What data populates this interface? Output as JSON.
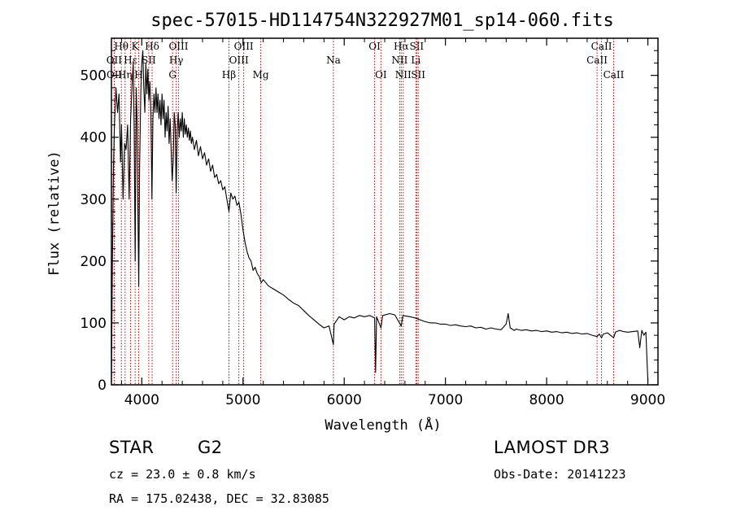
{
  "chart_data": {
    "type": "line",
    "title": "spec-57015-HD114754N322927M01_sp14-060.fits",
    "xlabel": "Wavelength (Å)",
    "ylabel": "Flux (relative)",
    "xlim": [
      3700,
      9100
    ],
    "ylim": [
      0,
      560
    ],
    "xticks": [
      4000,
      5000,
      6000,
      7000,
      8000,
      9000
    ],
    "yticks": [
      0,
      100,
      200,
      300,
      400,
      500
    ],
    "series": [
      {
        "name": "spectrum",
        "points": [
          [
            3700,
            5
          ],
          [
            3710,
            200
          ],
          [
            3720,
            350
          ],
          [
            3730,
            420
          ],
          [
            3745,
            480
          ],
          [
            3760,
            440
          ],
          [
            3775,
            470
          ],
          [
            3790,
            360
          ],
          [
            3800,
            420
          ],
          [
            3815,
            300
          ],
          [
            3830,
            390
          ],
          [
            3845,
            380
          ],
          [
            3860,
            420
          ],
          [
            3875,
            300
          ],
          [
            3890,
            430
          ],
          [
            3905,
            490
          ],
          [
            3915,
            520
          ],
          [
            3925,
            410
          ],
          [
            3935,
            200
          ],
          [
            3945,
            480
          ],
          [
            3955,
            420
          ],
          [
            3962,
            280
          ],
          [
            3970,
            160
          ],
          [
            3978,
            350
          ],
          [
            3990,
            470
          ],
          [
            4000,
            520
          ],
          [
            4010,
            540
          ],
          [
            4020,
            480
          ],
          [
            4030,
            440
          ],
          [
            4040,
            520
          ],
          [
            4050,
            470
          ],
          [
            4060,
            510
          ],
          [
            4070,
            460
          ],
          [
            4080,
            490
          ],
          [
            4090,
            440
          ],
          [
            4100,
            300
          ],
          [
            4110,
            430
          ],
          [
            4120,
            470
          ],
          [
            4130,
            440
          ],
          [
            4140,
            480
          ],
          [
            4150,
            440
          ],
          [
            4160,
            470
          ],
          [
            4170,
            430
          ],
          [
            4180,
            460
          ],
          [
            4190,
            420
          ],
          [
            4200,
            470
          ],
          [
            4210,
            430
          ],
          [
            4220,
            460
          ],
          [
            4230,
            400
          ],
          [
            4240,
            440
          ],
          [
            4250,
            410
          ],
          [
            4260,
            450
          ],
          [
            4270,
            390
          ],
          [
            4280,
            430
          ],
          [
            4290,
            380
          ],
          [
            4300,
            330
          ],
          [
            4310,
            360
          ],
          [
            4320,
            440
          ],
          [
            4330,
            420
          ],
          [
            4340,
            310
          ],
          [
            4350,
            410
          ],
          [
            4360,
            440
          ],
          [
            4370,
            400
          ],
          [
            4380,
            430
          ],
          [
            4390,
            410
          ],
          [
            4400,
            440
          ],
          [
            4410,
            400
          ],
          [
            4420,
            430
          ],
          [
            4430,
            405
          ],
          [
            4440,
            420
          ],
          [
            4450,
            400
          ],
          [
            4460,
            415
          ],
          [
            4470,
            395
          ],
          [
            4480,
            410
          ],
          [
            4490,
            390
          ],
          [
            4500,
            400
          ],
          [
            4520,
            380
          ],
          [
            4540,
            395
          ],
          [
            4560,
            370
          ],
          [
            4580,
            385
          ],
          [
            4600,
            365
          ],
          [
            4620,
            375
          ],
          [
            4640,
            355
          ],
          [
            4660,
            365
          ],
          [
            4680,
            345
          ],
          [
            4700,
            355
          ],
          [
            4720,
            335
          ],
          [
            4740,
            340
          ],
          [
            4760,
            325
          ],
          [
            4780,
            330
          ],
          [
            4800,
            315
          ],
          [
            4820,
            320
          ],
          [
            4840,
            300
          ],
          [
            4861,
            280
          ],
          [
            4880,
            310
          ],
          [
            4900,
            300
          ],
          [
            4920,
            305
          ],
          [
            4940,
            290
          ],
          [
            4960,
            295
          ],
          [
            4980,
            275
          ],
          [
            5000,
            250
          ],
          [
            5020,
            230
          ],
          [
            5040,
            215
          ],
          [
            5060,
            205
          ],
          [
            5080,
            200
          ],
          [
            5100,
            185
          ],
          [
            5120,
            190
          ],
          [
            5140,
            180
          ],
          [
            5160,
            175
          ],
          [
            5180,
            165
          ],
          [
            5200,
            170
          ],
          [
            5250,
            160
          ],
          [
            5300,
            155
          ],
          [
            5350,
            150
          ],
          [
            5400,
            145
          ],
          [
            5450,
            138
          ],
          [
            5500,
            132
          ],
          [
            5550,
            128
          ],
          [
            5600,
            120
          ],
          [
            5650,
            112
          ],
          [
            5700,
            105
          ],
          [
            5750,
            98
          ],
          [
            5800,
            92
          ],
          [
            5850,
            95
          ],
          [
            5893,
            65
          ],
          [
            5900,
            98
          ],
          [
            5950,
            110
          ],
          [
            6000,
            105
          ],
          [
            6050,
            110
          ],
          [
            6100,
            108
          ],
          [
            6150,
            112
          ],
          [
            6200,
            110
          ],
          [
            6250,
            112
          ],
          [
            6300,
            108
          ],
          [
            6310,
            20
          ],
          [
            6320,
            110
          ],
          [
            6363,
            92
          ],
          [
            6380,
            112
          ],
          [
            6450,
            115
          ],
          [
            6500,
            113
          ],
          [
            6563,
            95
          ],
          [
            6580,
            112
          ],
          [
            6650,
            110
          ],
          [
            6700,
            108
          ],
          [
            6750,
            105
          ],
          [
            6800,
            102
          ],
          [
            6850,
            100
          ],
          [
            6900,
            100
          ],
          [
            6950,
            98
          ],
          [
            7000,
            98
          ],
          [
            7050,
            96
          ],
          [
            7100,
            97
          ],
          [
            7150,
            95
          ],
          [
            7200,
            94
          ],
          [
            7250,
            95
          ],
          [
            7300,
            92
          ],
          [
            7350,
            93
          ],
          [
            7400,
            90
          ],
          [
            7450,
            92
          ],
          [
            7500,
            90
          ],
          [
            7550,
            89
          ],
          [
            7600,
            98
          ],
          [
            7620,
            115
          ],
          [
            7640,
            92
          ],
          [
            7680,
            88
          ],
          [
            7700,
            90
          ],
          [
            7750,
            88
          ],
          [
            7800,
            89
          ],
          [
            7850,
            87
          ],
          [
            7900,
            88
          ],
          [
            7950,
            86
          ],
          [
            8000,
            87
          ],
          [
            8050,
            85
          ],
          [
            8100,
            86
          ],
          [
            8150,
            84
          ],
          [
            8200,
            85
          ],
          [
            8250,
            83
          ],
          [
            8300,
            84
          ],
          [
            8350,
            82
          ],
          [
            8400,
            83
          ],
          [
            8450,
            80
          ],
          [
            8498,
            78
          ],
          [
            8520,
            82
          ],
          [
            8542,
            76
          ],
          [
            8560,
            82
          ],
          [
            8600,
            84
          ],
          [
            8662,
            76
          ],
          [
            8680,
            85
          ],
          [
            8720,
            88
          ],
          [
            8760,
            86
          ],
          [
            8800,
            85
          ],
          [
            8850,
            86
          ],
          [
            8900,
            87
          ],
          [
            8920,
            60
          ],
          [
            8940,
            88
          ],
          [
            8960,
            80
          ],
          [
            8980,
            85
          ],
          [
            9000,
            5
          ]
        ]
      }
    ],
    "lines": [
      {
        "name": "Hθ",
        "x": 3798,
        "row": 1
      },
      {
        "name": "OII",
        "x": 3727,
        "row": 2
      },
      {
        "name": "OII",
        "x": 3729,
        "row": 3
      },
      {
        "name": "Hη",
        "x": 3835,
        "row": 3
      },
      {
        "name": "K",
        "x": 3934,
        "row": 1
      },
      {
        "name": "Hε",
        "x": 3889,
        "row": 2
      },
      {
        "name": "H",
        "x": 3969,
        "row": 3
      },
      {
        "name": "SII",
        "x": 4069,
        "row": 2
      },
      {
        "name": "Hδ",
        "x": 4102,
        "row": 1
      },
      {
        "name": "OIII",
        "x": 4363,
        "row": 1
      },
      {
        "name": "Hγ",
        "x": 4340,
        "row": 2
      },
      {
        "name": "G",
        "x": 4304,
        "row": 3
      },
      {
        "name": "Hβ",
        "x": 4861,
        "row": 3
      },
      {
        "name": "OIII",
        "x": 5007,
        "row": 1
      },
      {
        "name": "OIII",
        "x": 4959,
        "row": 2
      },
      {
        "name": "Mg",
        "x": 5175,
        "row": 3
      },
      {
        "name": "Na",
        "x": 5893,
        "row": 2
      },
      {
        "name": "OI",
        "x": 6300,
        "row": 1
      },
      {
        "name": "OI",
        "x": 6363,
        "row": 3
      },
      {
        "name": "Hα",
        "x": 6563,
        "row": 1
      },
      {
        "name": "NII",
        "x": 6548,
        "row": 2
      },
      {
        "name": "NII",
        "x": 6583,
        "row": 3
      },
      {
        "name": "SII",
        "x": 6716,
        "row": 1
      },
      {
        "name": "Li",
        "x": 6708,
        "row": 2
      },
      {
        "name": "SII",
        "x": 6731,
        "row": 3
      },
      {
        "name": "CaII",
        "x": 8542,
        "row": 1
      },
      {
        "name": "CaII",
        "x": 8498,
        "row": 2
      },
      {
        "name": "CaII",
        "x": 8662,
        "row": 3
      }
    ]
  },
  "info": {
    "object_type": "STAR",
    "spectral_class": "G2",
    "survey": "LAMOST DR3",
    "cz": "cz = 23.0 ± 0.8 km/s",
    "obs_date": "Obs-Date: 20141223",
    "coords": "RA = 175.02438, DEC =  32.83085"
  },
  "colors": {
    "spectrum": "#000000",
    "line_marker": "#cc0000",
    "axis": "#000000"
  }
}
